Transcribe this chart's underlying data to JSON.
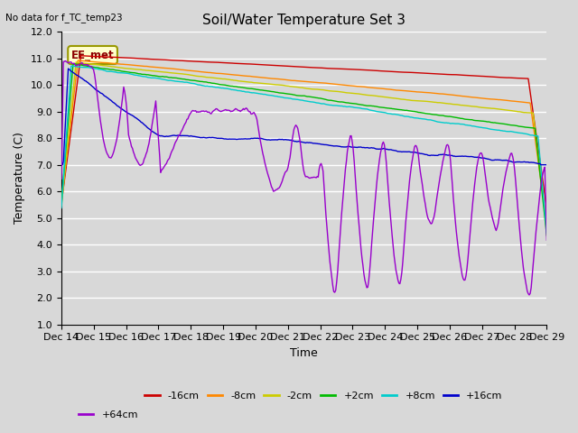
{
  "title": "Soil/Water Temperature Set 3",
  "xlabel": "Time",
  "ylabel": "Temperature (C)",
  "annotation": "No data for f_TC_temp23",
  "label_box": "EE_met",
  "ylim": [
    1.0,
    12.0
  ],
  "yticks": [
    1.0,
    2.0,
    3.0,
    4.0,
    5.0,
    6.0,
    7.0,
    8.0,
    9.0,
    10.0,
    11.0,
    12.0
  ],
  "xtick_labels": [
    "Dec 14",
    "Dec 15",
    "Dec 16",
    "Dec 17",
    "Dec 18",
    "Dec 19",
    "Dec 20",
    "Dec 21",
    "Dec 22",
    "Dec 23",
    "Dec 24",
    "Dec 25",
    "Dec 26",
    "Dec 27",
    "Dec 28",
    "Dec 29"
  ],
  "series_colors": [
    "#cc0000",
    "#ff8800",
    "#cccc00",
    "#00bb00",
    "#00cccc",
    "#0000cc",
    "#9900cc"
  ],
  "series_labels": [
    "-16cm",
    "-8cm",
    "-2cm",
    "+2cm",
    "+8cm",
    "+16cm",
    "+64cm"
  ],
  "bg_color": "#d8d8d8",
  "plot_bg_color": "#d8d8d8",
  "grid_color": "#ffffff",
  "title_fontsize": 11,
  "axis_fontsize": 9,
  "tick_fontsize": 8
}
